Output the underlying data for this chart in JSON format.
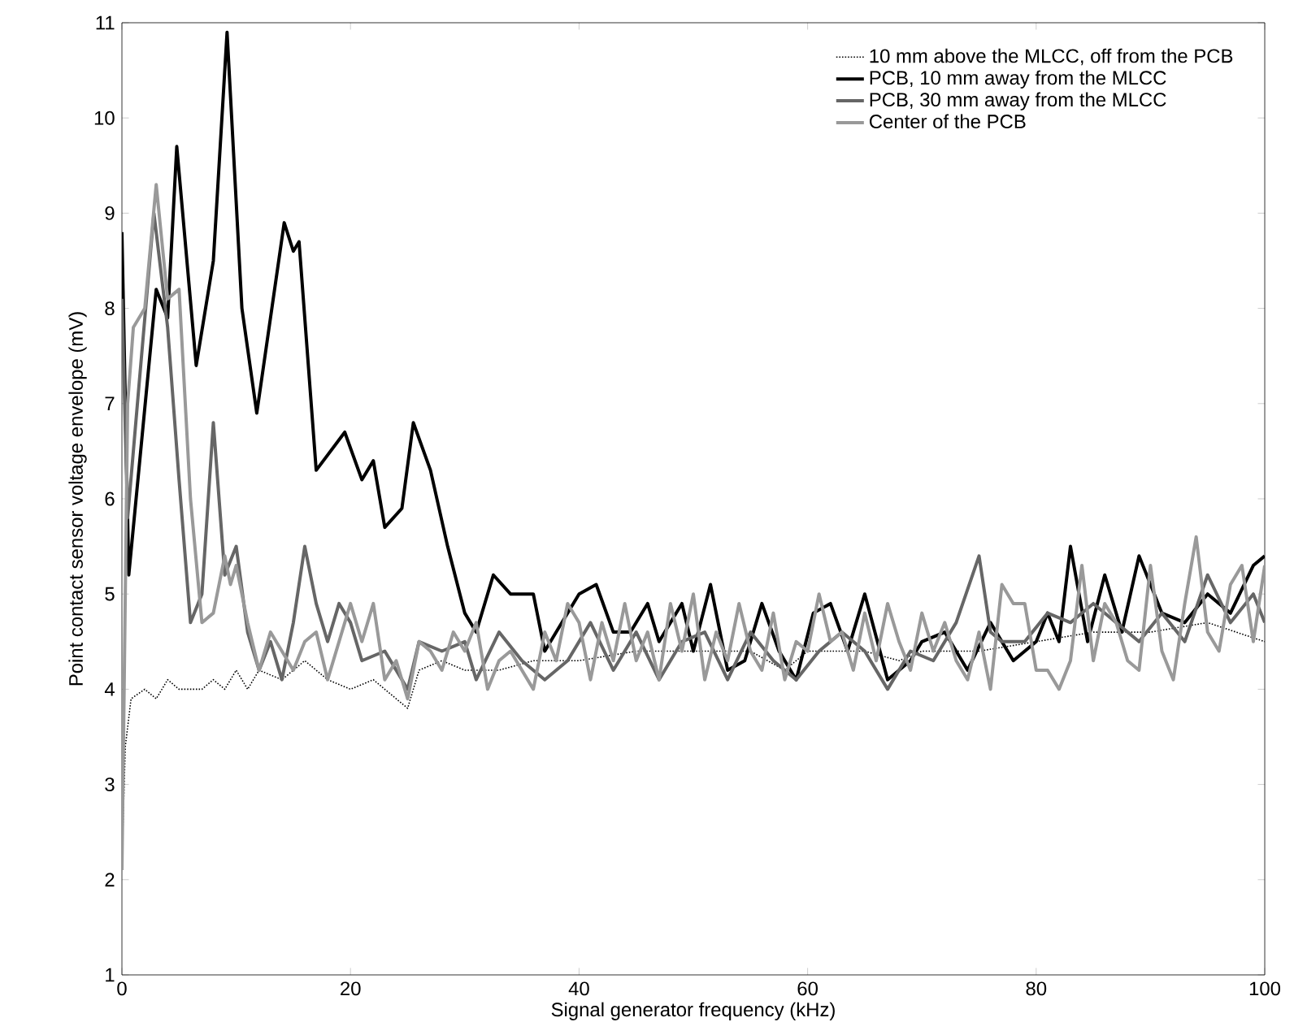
{
  "chart_data": {
    "type": "line",
    "xlabel": "Signal generator frequency (kHz)",
    "ylabel": "Point contact sensor voltage envelope (mV)",
    "xlim": [
      0,
      100
    ],
    "ylim": [
      1,
      11
    ],
    "xticks": [
      0,
      20,
      40,
      60,
      80,
      100
    ],
    "yticks": [
      1,
      2,
      3,
      4,
      5,
      6,
      7,
      8,
      9,
      10,
      11
    ],
    "legend": "top right",
    "grid": false,
    "marker": "none",
    "series": [
      {
        "name": "10 mm above the MLCC, off from the PCB",
        "color": "#000000",
        "line_style": "dotted",
        "x": [
          0,
          0.3,
          0.8,
          2,
          3,
          4,
          5,
          7,
          8,
          9,
          10,
          11,
          12,
          14,
          16,
          18,
          20,
          22,
          24,
          25,
          26,
          28,
          30,
          33,
          36,
          40,
          45,
          50,
          55,
          58,
          60,
          65,
          68,
          70,
          75,
          80,
          85,
          90,
          95,
          100
        ],
        "values": [
          2.2,
          3.4,
          3.9,
          4.0,
          3.9,
          4.1,
          4.0,
          4.0,
          4.1,
          4.0,
          4.2,
          4.0,
          4.2,
          4.1,
          4.3,
          4.1,
          4.0,
          4.1,
          3.9,
          3.8,
          4.2,
          4.3,
          4.2,
          4.2,
          4.3,
          4.3,
          4.4,
          4.4,
          4.4,
          4.2,
          4.4,
          4.4,
          4.3,
          4.4,
          4.4,
          4.5,
          4.6,
          4.6,
          4.7,
          4.5
        ]
      },
      {
        "name": "PCB, 10 mm away from the MLCC",
        "color": "#000000",
        "line_style": "solid",
        "x": [
          0,
          0.6,
          3,
          4,
          4.8,
          6.5,
          8,
          9.2,
          10.5,
          11.8,
          14.2,
          15,
          15.5,
          17,
          19.5,
          21,
          22,
          23,
          24.5,
          25.5,
          27,
          28.5,
          30,
          31,
          32.5,
          34,
          36,
          37,
          38,
          40,
          41.5,
          43,
          44.5,
          46,
          47,
          49,
          50,
          51.5,
          53,
          54.5,
          56,
          57.5,
          59,
          60.5,
          62,
          63.5,
          65,
          67,
          69,
          70,
          72,
          74,
          76,
          78,
          80,
          81,
          82,
          83,
          84.5,
          86,
          87.5,
          89,
          91,
          93,
          95,
          97,
          99,
          100
        ],
        "values": [
          8.8,
          5.2,
          8.2,
          7.9,
          9.7,
          7.4,
          8.5,
          10.9,
          8.0,
          6.9,
          8.9,
          8.6,
          8.7,
          6.3,
          6.7,
          6.2,
          6.4,
          5.7,
          5.9,
          6.8,
          6.3,
          5.5,
          4.8,
          4.6,
          5.2,
          5.0,
          5.0,
          4.4,
          4.6,
          5.0,
          5.1,
          4.6,
          4.6,
          4.9,
          4.5,
          4.9,
          4.4,
          5.1,
          4.2,
          4.3,
          4.9,
          4.4,
          4.1,
          4.8,
          4.9,
          4.4,
          5.0,
          4.1,
          4.3,
          4.5,
          4.6,
          4.2,
          4.7,
          4.3,
          4.5,
          4.8,
          4.5,
          5.5,
          4.5,
          5.2,
          4.6,
          5.4,
          4.8,
          4.7,
          5.0,
          4.8,
          5.3,
          5.4
        ]
      },
      {
        "name": "PCB, 30 mm away from the MLCC",
        "color": "#666666",
        "line_style": "solid",
        "x": [
          0,
          0.5,
          1.5,
          2.8,
          4,
          5,
          6,
          7,
          8,
          9,
          10,
          11,
          12,
          13,
          14,
          15,
          16,
          17,
          18,
          19,
          20,
          21,
          23,
          25,
          26,
          28,
          30,
          31,
          33,
          35,
          37,
          39,
          41,
          43,
          45,
          47,
          49,
          51,
          53,
          55,
          57,
          59,
          61,
          63,
          65,
          67,
          69,
          71,
          73,
          75,
          76,
          77,
          79,
          81,
          83,
          85,
          87,
          89,
          91,
          93,
          95,
          97,
          99,
          100
        ],
        "values": [
          8.1,
          5.8,
          7.2,
          9.0,
          7.8,
          6.2,
          4.7,
          5.0,
          6.8,
          5.2,
          5.5,
          4.6,
          4.2,
          4.5,
          4.1,
          4.7,
          5.5,
          4.9,
          4.5,
          4.9,
          4.7,
          4.3,
          4.4,
          4.0,
          4.5,
          4.4,
          4.5,
          4.1,
          4.6,
          4.3,
          4.1,
          4.3,
          4.7,
          4.2,
          4.6,
          4.1,
          4.5,
          4.6,
          4.1,
          4.6,
          4.3,
          4.1,
          4.4,
          4.6,
          4.4,
          4.0,
          4.4,
          4.3,
          4.7,
          5.4,
          4.6,
          4.5,
          4.5,
          4.8,
          4.7,
          4.9,
          4.7,
          4.5,
          4.8,
          4.5,
          5.2,
          4.7,
          5.0,
          4.7
        ]
      },
      {
        "name": "Center of the PCB",
        "color": "#999999",
        "line_style": "solid",
        "x": [
          0,
          0.5,
          1,
          2,
          3,
          4,
          5,
          6,
          7,
          8,
          9,
          9.5,
          10,
          11,
          12,
          13,
          14,
          15,
          16,
          17,
          18,
          20,
          21,
          22,
          23,
          24,
          25,
          26,
          27,
          28,
          29,
          30,
          31,
          32,
          33,
          34,
          36,
          37,
          38,
          39,
          40,
          41,
          42,
          43,
          44,
          45,
          46,
          47,
          48,
          49,
          50,
          51,
          52,
          53,
          54,
          55,
          56,
          57,
          58,
          59,
          60,
          61,
          62,
          63,
          64,
          65,
          66,
          67,
          68,
          69,
          70,
          71,
          72,
          73,
          74,
          75,
          76,
          77,
          78,
          79,
          80,
          81,
          82,
          83,
          84,
          85,
          86,
          87,
          88,
          89,
          90,
          91,
          92,
          93,
          94,
          95,
          96,
          97,
          98,
          99,
          100
        ],
        "values": [
          2.1,
          7.0,
          7.8,
          8.0,
          9.3,
          8.1,
          8.2,
          6.0,
          4.7,
          4.8,
          5.4,
          5.1,
          5.3,
          4.7,
          4.2,
          4.6,
          4.4,
          4.2,
          4.5,
          4.6,
          4.1,
          4.9,
          4.5,
          4.9,
          4.1,
          4.3,
          3.9,
          4.5,
          4.4,
          4.2,
          4.6,
          4.4,
          4.7,
          4.0,
          4.3,
          4.4,
          4.0,
          4.6,
          4.3,
          4.9,
          4.7,
          4.1,
          4.7,
          4.3,
          4.9,
          4.3,
          4.6,
          4.1,
          4.9,
          4.4,
          5.0,
          4.1,
          4.6,
          4.3,
          4.9,
          4.4,
          4.2,
          4.8,
          4.1,
          4.5,
          4.4,
          5.0,
          4.5,
          4.6,
          4.2,
          4.8,
          4.3,
          4.9,
          4.5,
          4.2,
          4.8,
          4.4,
          4.7,
          4.3,
          4.1,
          4.6,
          4.0,
          5.1,
          4.9,
          4.9,
          4.2,
          4.2,
          4.0,
          4.3,
          5.3,
          4.3,
          4.9,
          4.7,
          4.3,
          4.2,
          5.3,
          4.4,
          4.1,
          4.9,
          5.6,
          4.6,
          4.4,
          5.1,
          5.3,
          4.5,
          5.3
        ]
      }
    ]
  }
}
